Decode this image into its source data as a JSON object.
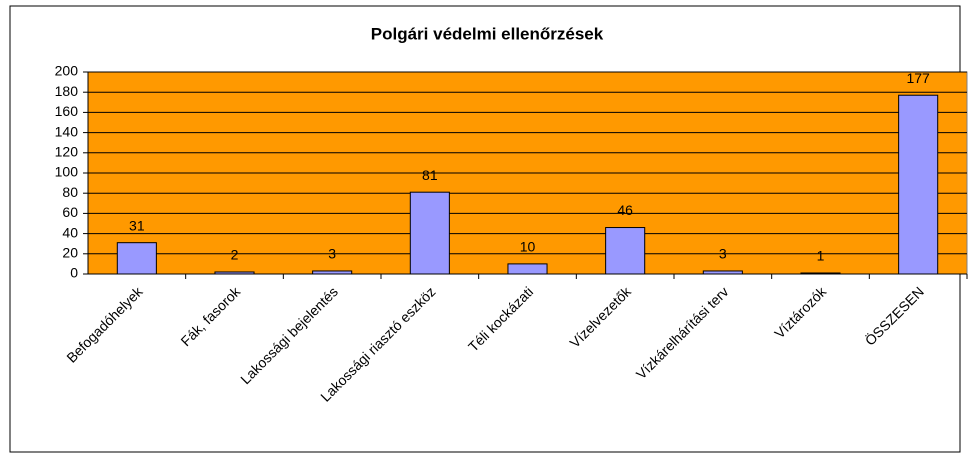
{
  "chart_data": {
    "type": "bar",
    "title": "Polgári védelmi ellenőrzések",
    "categories": [
      "Befogadóhelyek",
      "Fák, fasorok",
      "Lakossági bejelentés",
      "Lakossági riasztó eszköz",
      "Téli kockázati",
      "Vízelvezetők",
      "Vízkárelhárítási terv",
      "Víztározók",
      "ÖSSZESEN"
    ],
    "values": [
      31,
      2,
      3,
      81,
      10,
      46,
      3,
      1,
      177
    ],
    "color": "#9999ff",
    "background": "#ff9900",
    "ylim": [
      0,
      200
    ],
    "yticks": [
      0,
      20,
      40,
      60,
      80,
      100,
      120,
      140,
      160,
      180,
      200
    ],
    "grid": true
  }
}
